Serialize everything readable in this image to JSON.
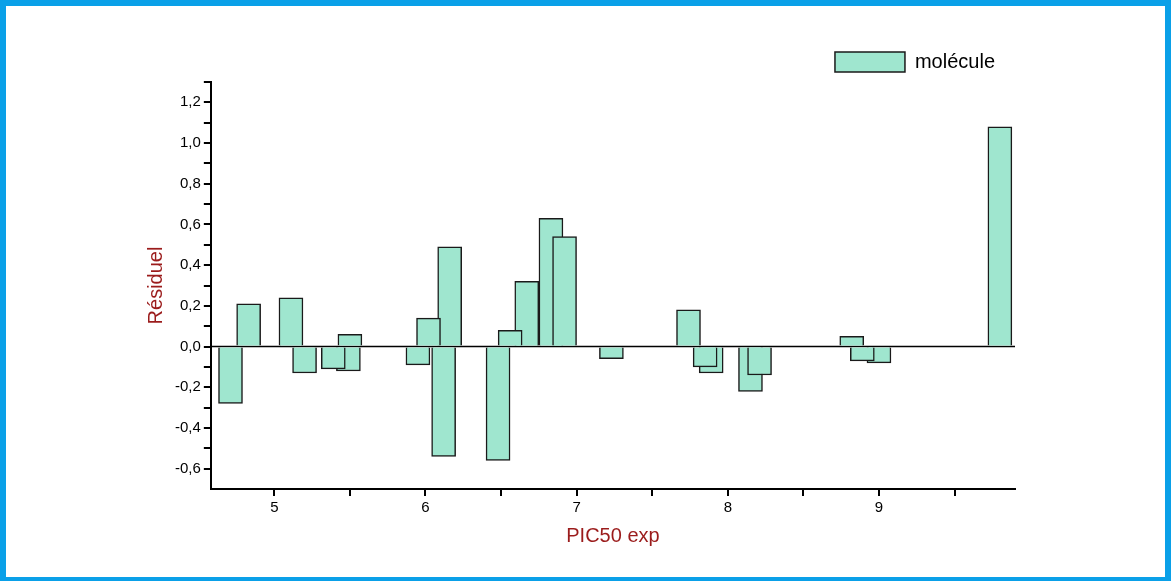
{
  "chart_data": {
    "type": "bar",
    "xlabel": "PIC50 exp",
    "ylabel": "Résiduel",
    "x": [
      4.71,
      4.83,
      4.96,
      5.11,
      5.2,
      5.39,
      5.49,
      5.5,
      5.95,
      6.02,
      6.12,
      6.16,
      6.48,
      6.56,
      6.67,
      6.83,
      6.92,
      7.23,
      7.74,
      7.85,
      7.89,
      8.15,
      8.21,
      8.82,
      8.89,
      9.0,
      9.8
    ],
    "series": [
      {
        "name": "molécule",
        "color": "#9fe6cf",
        "values": [
          -0.28,
          0.21,
          0,
          0.24,
          -0.13,
          -0.11,
          -0.12,
          0.06,
          -0.09,
          0.14,
          -0.54,
          0.49,
          -0.56,
          0.08,
          0.32,
          0.63,
          0.54,
          -0.06,
          0.18,
          -0.1,
          -0.13,
          -0.22,
          -0.14,
          0.05,
          -0.07,
          -0.08,
          1.08
        ]
      }
    ],
    "xlim": [
      4.58,
      9.9
    ],
    "xticks": [
      5,
      {
        "value": 5.5,
        "label": null
      },
      6,
      {
        "value": 6.5,
        "label": null
      },
      7,
      {
        "value": 7.5,
        "label": null
      },
      8,
      {
        "value": 8.5,
        "label": null
      },
      9,
      {
        "value": 9.5,
        "label": null
      }
    ],
    "ylim": [
      -0.7,
      1.3
    ],
    "yticks": [
      {
        "value": -0.6,
        "label": "-0,6"
      },
      {
        "value": -0.5,
        "label": null
      },
      {
        "value": -0.4,
        "label": "-0,4"
      },
      {
        "value": -0.3,
        "label": null
      },
      {
        "value": -0.2,
        "label": "-0,2"
      },
      {
        "value": -0.1,
        "label": null
      },
      {
        "value": 0,
        "label": "0,0"
      },
      {
        "value": 0.1,
        "label": null
      },
      {
        "value": 0.2,
        "label": "0,2"
      },
      {
        "value": 0.3,
        "label": null
      },
      {
        "value": 0.4,
        "label": "0,4"
      },
      {
        "value": 0.5,
        "label": null
      },
      {
        "value": 0.6,
        "label": "0,6"
      },
      {
        "value": 0.7,
        "label": null
      },
      {
        "value": 0.8,
        "label": "0,8"
      },
      {
        "value": 0.9,
        "label": null
      },
      {
        "value": 1.0,
        "label": "1,0"
      },
      {
        "value": 1.1,
        "label": null
      },
      {
        "value": 1.2,
        "label": "1,2"
      },
      {
        "value": 1.3,
        "label": null
      }
    ],
    "ref_lines": [
      {
        "axis": "y",
        "value": 0,
        "color": "#000000"
      }
    ],
    "grid": false,
    "legend": "top right"
  }
}
